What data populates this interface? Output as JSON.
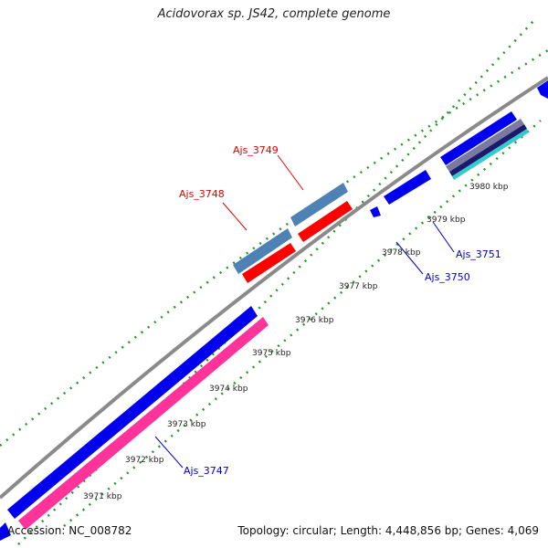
{
  "title": "Acidovorax sp. JS42, complete genome",
  "footer": {
    "accession": "Accession: NC_008782",
    "summary": "Topology: circular; Length: 4,448,856 bp; Genes: 4,069"
  },
  "ticks": [
    "3971 kbp",
    "3972 kbp",
    "3973 kbp",
    "3974 kbp",
    "3975 kbp",
    "3976 kbp",
    "3977 kbp",
    "3978 kbp",
    "3979 kbp",
    "3980 kbp"
  ],
  "gene_labels": [
    {
      "id": "Ajs_3747",
      "text": "Ajs_3747",
      "color": "#0000cc"
    },
    {
      "id": "Ajs_3748",
      "text": "Ajs_3748",
      "color": "#e00000"
    },
    {
      "id": "Ajs_3749",
      "text": "Ajs_3749",
      "color": "#e00000"
    },
    {
      "id": "Ajs_3750",
      "text": "Ajs_3750",
      "color": "#0000cc"
    },
    {
      "id": "Ajs_3751",
      "text": "Ajs_3751",
      "color": "#0000cc"
    }
  ],
  "colors": {
    "backbone": "#8a8a8a",
    "gene_blue": "#0000ee",
    "gene_pink": "#ff3399",
    "gene_red": "#ff0000",
    "gene_steel": "#4f82b4",
    "gene_cyan": "#33cccc",
    "gene_slate": "#7a7aa0",
    "gene_navy": "#1a1a6e",
    "dots": "#229922"
  }
}
